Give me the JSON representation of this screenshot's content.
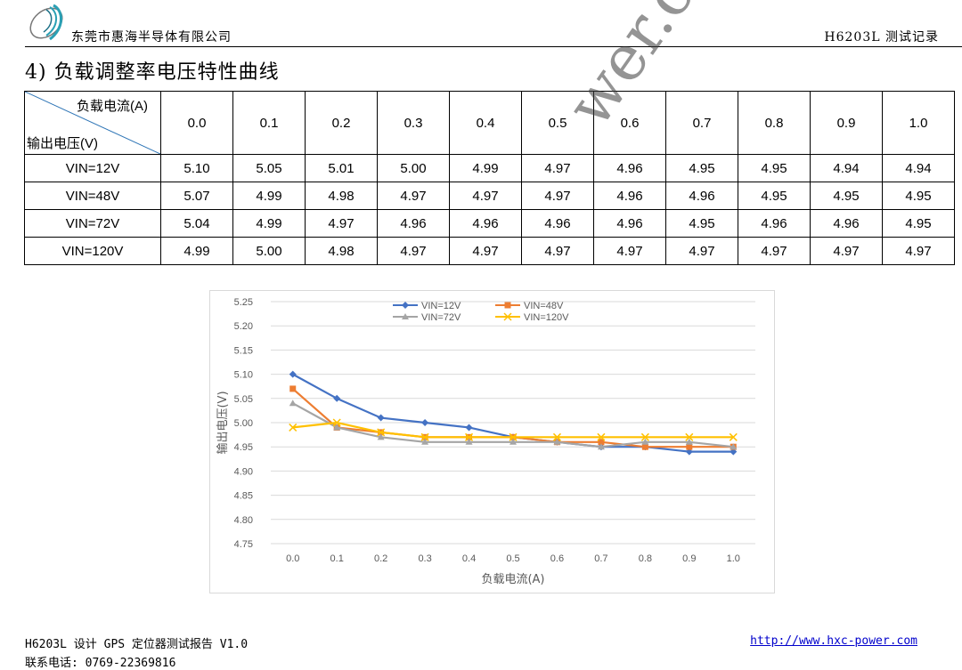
{
  "header": {
    "company": "东莞市惠海半导体有限公司",
    "doc_id": "H6203L 测试记录"
  },
  "section": {
    "title": "4) 负载调整率电压特性曲线"
  },
  "table": {
    "corner_top": "负载电流(A)",
    "corner_bottom": "输出电压(V)",
    "columns": [
      "0.0",
      "0.1",
      "0.2",
      "0.3",
      "0.4",
      "0.5",
      "0.6",
      "0.7",
      "0.8",
      "0.9",
      "1.0"
    ],
    "rows": [
      {
        "label": "VIN=12V",
        "values": [
          "5.10",
          "5.05",
          "5.01",
          "5.00",
          "4.99",
          "4.97",
          "4.96",
          "4.95",
          "4.95",
          "4.94",
          "4.94"
        ]
      },
      {
        "label": "VIN=48V",
        "values": [
          "5.07",
          "4.99",
          "4.98",
          "4.97",
          "4.97",
          "4.97",
          "4.96",
          "4.96",
          "4.95",
          "4.95",
          "4.95"
        ]
      },
      {
        "label": "VIN=72V",
        "values": [
          "5.04",
          "4.99",
          "4.97",
          "4.96",
          "4.96",
          "4.96",
          "4.96",
          "4.95",
          "4.96",
          "4.96",
          "4.95"
        ]
      },
      {
        "label": "VIN=120V",
        "values": [
          "4.99",
          "5.00",
          "4.98",
          "4.97",
          "4.97",
          "4.97",
          "4.97",
          "4.97",
          "4.97",
          "4.97",
          "4.97"
        ]
      }
    ]
  },
  "watermark": "wer.com",
  "chart_data": {
    "type": "line",
    "xlabel": "负载电流(A)",
    "ylabel": "输出电压(V)",
    "categories": [
      "0.0",
      "0.1",
      "0.2",
      "0.3",
      "0.4",
      "0.5",
      "0.6",
      "0.7",
      "0.8",
      "0.9",
      "1.0"
    ],
    "ylim": [
      4.75,
      5.25
    ],
    "yticks": [
      "5.25",
      "5.20",
      "5.15",
      "5.10",
      "5.05",
      "5.00",
      "4.95",
      "4.90",
      "4.85",
      "4.80",
      "4.75"
    ],
    "grid": true,
    "legend_position": "top",
    "series": [
      {
        "name": "VIN=12V",
        "color": "#4472c4",
        "marker": "diamond",
        "values": [
          5.1,
          5.05,
          5.01,
          5.0,
          4.99,
          4.97,
          4.96,
          4.95,
          4.95,
          4.94,
          4.94
        ]
      },
      {
        "name": "VIN=48V",
        "color": "#ed7d31",
        "marker": "square",
        "values": [
          5.07,
          4.99,
          4.98,
          4.97,
          4.97,
          4.97,
          4.96,
          4.96,
          4.95,
          4.95,
          4.95
        ]
      },
      {
        "name": "VIN=72V",
        "color": "#a5a5a5",
        "marker": "triangle",
        "values": [
          5.04,
          4.99,
          4.97,
          4.96,
          4.96,
          4.96,
          4.96,
          4.95,
          4.96,
          4.96,
          4.95
        ]
      },
      {
        "name": "VIN=120V",
        "color": "#ffc000",
        "marker": "x",
        "values": [
          4.99,
          5.0,
          4.98,
          4.97,
          4.97,
          4.97,
          4.97,
          4.97,
          4.97,
          4.97,
          4.97
        ]
      }
    ]
  },
  "footer": {
    "doc_title": "H6203L 设计 GPS 定位器测试报告 V1.0",
    "phone": "联系电话: 0769-22369816",
    "url": "http://www.hxc-power.com"
  }
}
